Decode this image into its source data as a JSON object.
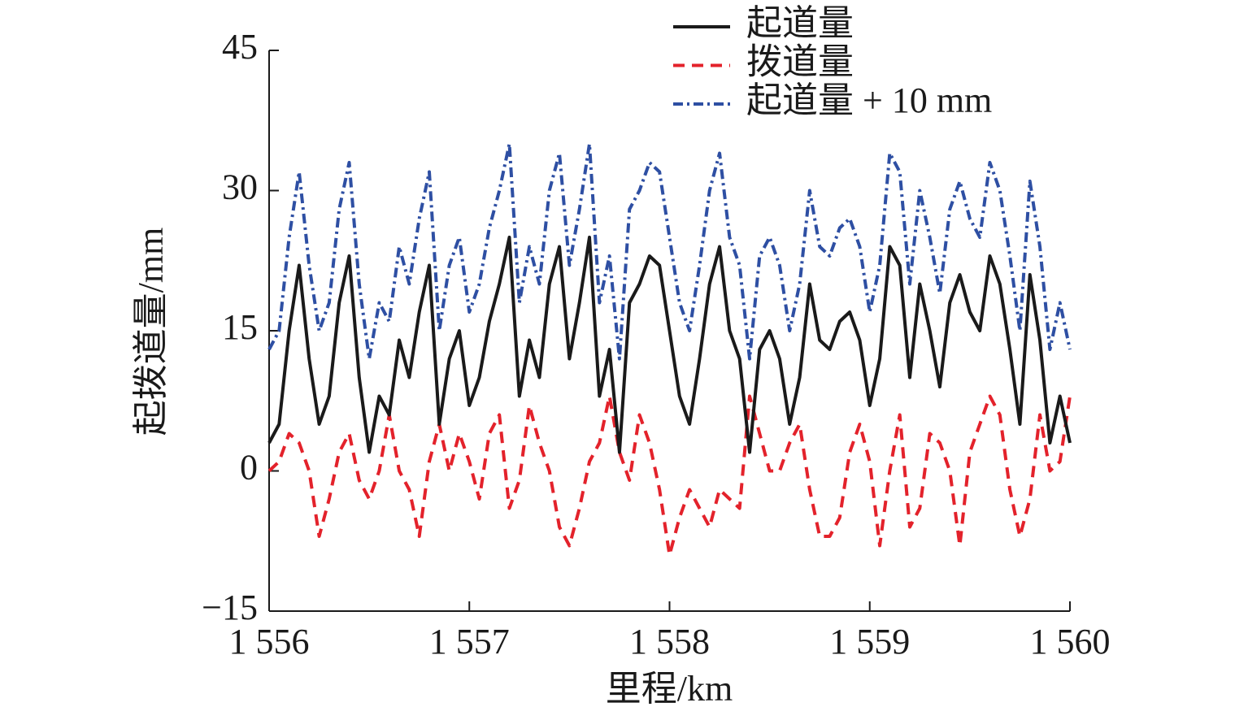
{
  "chart_data": {
    "type": "line",
    "xlabel": "里程/km",
    "ylabel": "起拨道量/mm",
    "x": [
      1556.0,
      1556.05,
      1556.1,
      1556.15,
      1556.2,
      1556.25,
      1556.3,
      1556.35,
      1556.4,
      1556.45,
      1556.5,
      1556.55,
      1556.6,
      1556.65,
      1556.7,
      1556.75,
      1556.8,
      1556.85,
      1556.9,
      1556.95,
      1557.0,
      1557.05,
      1557.1,
      1557.15,
      1557.2,
      1557.25,
      1557.3,
      1557.35,
      1557.4,
      1557.45,
      1557.5,
      1557.55,
      1557.6,
      1557.65,
      1557.7,
      1557.75,
      1557.8,
      1557.85,
      1557.9,
      1557.95,
      1558.0,
      1558.05,
      1558.1,
      1558.15,
      1558.2,
      1558.25,
      1558.3,
      1558.35,
      1558.4,
      1558.45,
      1558.5,
      1558.55,
      1558.6,
      1558.65,
      1558.7,
      1558.75,
      1558.8,
      1558.85,
      1558.9,
      1558.95,
      1559.0,
      1559.05,
      1559.1,
      1559.15,
      1559.2,
      1559.25,
      1559.3,
      1559.35,
      1559.4,
      1559.45,
      1559.5,
      1559.55,
      1559.6,
      1559.65,
      1559.7,
      1559.75,
      1559.8,
      1559.85,
      1559.9,
      1559.95,
      1560.0
    ],
    "series": [
      {
        "name": "起道量",
        "color": "#1a1a1a",
        "dash": "solid",
        "values": [
          3,
          5,
          15,
          22,
          12,
          5,
          8,
          18,
          23,
          10,
          2,
          8,
          6,
          14,
          10,
          17,
          22,
          5,
          12,
          15,
          7,
          10,
          16,
          20,
          25,
          8,
          14,
          10,
          20,
          24,
          12,
          18,
          25,
          8,
          13,
          2,
          18,
          20,
          23,
          22,
          15,
          8,
          5,
          12,
          20,
          24,
          15,
          12,
          2,
          13,
          15,
          12,
          5,
          10,
          20,
          14,
          13,
          16,
          17,
          14,
          7,
          12,
          24,
          22,
          10,
          20,
          15,
          9,
          18,
          21,
          17,
          15,
          23,
          20,
          13,
          5,
          21,
          14,
          3,
          8,
          3
        ]
      },
      {
        "name": "拨道量",
        "color": "#e3222b",
        "dash": "dashed",
        "values": [
          0,
          1,
          4,
          3,
          0,
          -7,
          -3,
          2,
          4,
          -1,
          -3,
          0,
          6,
          0,
          -2,
          -7,
          1,
          5,
          0,
          4,
          1,
          -3,
          4,
          6,
          -4,
          -1,
          7,
          3,
          0,
          -6,
          -8,
          -4,
          1,
          3,
          8,
          2,
          -1,
          6,
          3,
          -2,
          -9,
          -5,
          -2,
          -4,
          -6,
          -2,
          -3,
          -4,
          8,
          4,
          0,
          0,
          3,
          5,
          -2,
          -7,
          -7,
          -5,
          2,
          5,
          1,
          -8,
          0,
          6,
          -6,
          -4,
          4,
          3,
          0,
          -8,
          2,
          5,
          8,
          6,
          -2,
          -7,
          -3,
          6,
          0,
          1,
          8
        ]
      },
      {
        "name": "起道量 + 10 mm",
        "color": "#2e4fa3",
        "dash": "dashdot",
        "values": [
          13,
          15,
          25,
          32,
          22,
          15,
          18,
          28,
          33,
          20,
          12,
          18,
          16,
          24,
          20,
          27,
          32,
          15,
          22,
          25,
          17,
          20,
          26,
          30,
          35,
          18,
          24,
          20,
          30,
          34,
          22,
          28,
          35,
          18,
          23,
          12,
          28,
          30,
          33,
          32,
          25,
          18,
          15,
          22,
          30,
          34,
          25,
          22,
          12,
          23,
          25,
          22,
          15,
          20,
          30,
          24,
          23,
          26,
          27,
          24,
          17,
          22,
          34,
          32,
          20,
          30,
          25,
          19,
          28,
          31,
          27,
          25,
          33,
          30,
          23,
          15,
          31,
          24,
          13,
          18,
          13
        ]
      }
    ],
    "xlim": [
      1556,
      1560
    ],
    "xticks": [
      {
        "value": 1556,
        "label": "1 556"
      },
      {
        "value": 1557,
        "label": "1 557"
      },
      {
        "value": 1558,
        "label": "1 558"
      },
      {
        "value": 1559,
        "label": "1 559"
      },
      {
        "value": 1560,
        "label": "1 560"
      }
    ],
    "ylim": [
      -15,
      45
    ],
    "yticks": [
      {
        "value": -15,
        "label": "−15"
      },
      0,
      15,
      30,
      45
    ]
  }
}
